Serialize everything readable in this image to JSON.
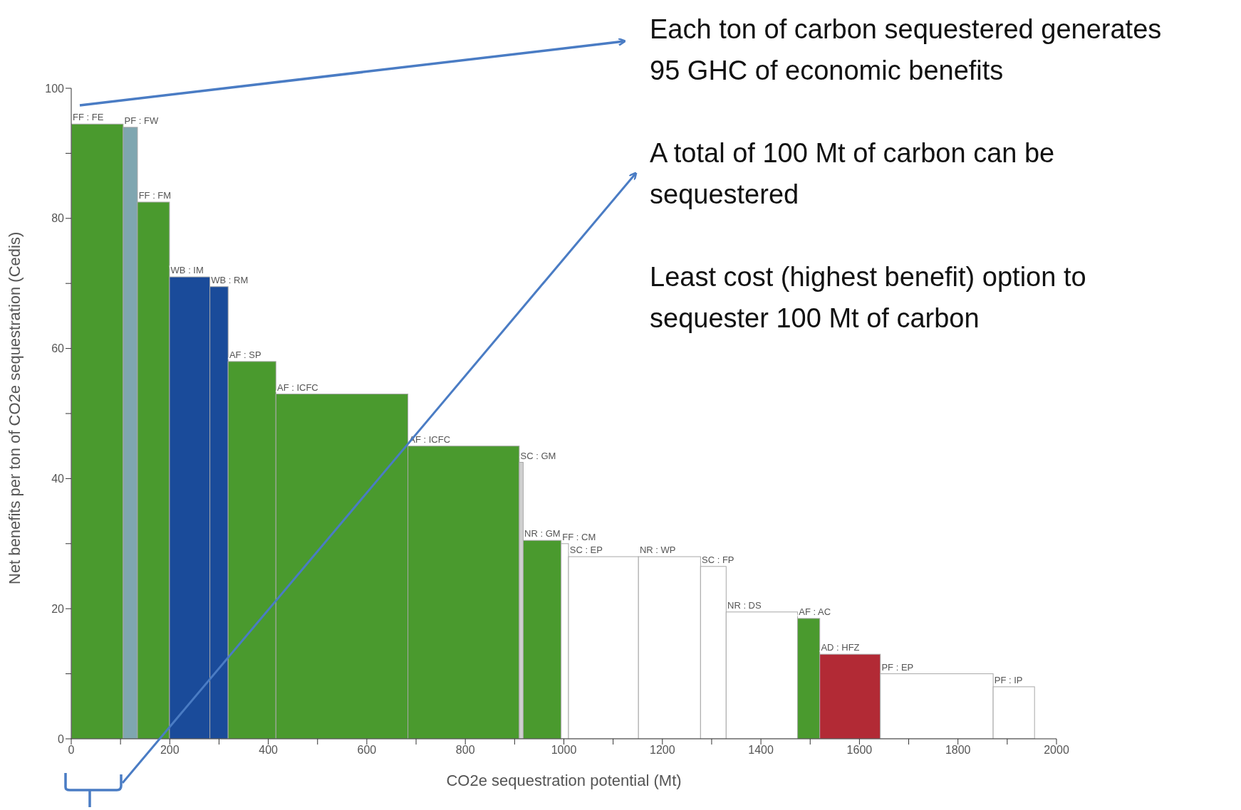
{
  "chart_data": {
    "type": "histogram",
    "xlabel": "CO2e sequestration potential (Mt)",
    "ylabel": "Net benefits per ton of CO2e sequestration (Cedis)",
    "bins": [
      0,
      105,
      134,
      199,
      281,
      318,
      415,
      683,
      909,
      917,
      994,
      1009,
      1151,
      1277,
      1329,
      1474,
      1519,
      1642,
      1871,
      1955
    ],
    "values": [
      94.5,
      94,
      82.5,
      71,
      69.5,
      58,
      53,
      45,
      42.5,
      30.5,
      30,
      28,
      28,
      26.5,
      19.5,
      18.5,
      13,
      10,
      8
    ],
    "colors": [
      "#4a9a2e",
      "#7fa6b0",
      "#4a9a2e",
      "#1a4b9a",
      "#1a4b9a",
      "#4a9a2e",
      "#4a9a2e",
      "#4a9a2e",
      "#d0d0d0",
      "#4a9a2e",
      "#ffffff",
      "#ffffff",
      "#ffffff",
      "#ffffff",
      "#ffffff",
      "#4a9a2e",
      "#b22a35",
      "#ffffff",
      "#ffffff"
    ],
    "xlim": [
      0,
      2000
    ],
    "xticks": [
      0,
      {
        "value": 100,
        "label": null
      },
      200,
      {
        "value": 300,
        "label": null
      },
      400,
      {
        "value": 500,
        "label": null
      },
      600,
      {
        "value": 700,
        "label": null
      },
      800,
      {
        "value": 900,
        "label": null
      },
      1000,
      {
        "value": 1100,
        "label": null
      },
      1200,
      {
        "value": 1300,
        "label": null
      },
      1400,
      {
        "value": 1500,
        "label": null
      },
      1600,
      {
        "value": 1700,
        "label": null
      },
      1800,
      {
        "value": 1900,
        "label": null
      },
      2000
    ],
    "ylim": [
      0,
      100
    ],
    "yticks": [
      0,
      {
        "value": 10,
        "label": null
      },
      20,
      {
        "value": 30,
        "label": null
      },
      40,
      {
        "value": 50,
        "label": null
      },
      60,
      {
        "value": 70,
        "label": null
      },
      80,
      {
        "value": 90,
        "label": null
      },
      100
    ],
    "grid": false,
    "legend": false,
    "annotations": [
      "Each ton of carbon sequestered generates 95 GHC of economic benefits",
      "A total of 100 Mt of carbon can be sequestered",
      "Least cost (highest benefit) option to sequester 100 Mt of carbon",
      {
        "text": "FF : FE",
        "x": 0,
        "y": 94.5
      },
      {
        "text": "PF : FW",
        "x": 105,
        "y": 94
      },
      {
        "text": "FF : FM",
        "x": 134,
        "y": 82.5
      },
      {
        "text": "WB : IM",
        "x": 199,
        "y": 71
      },
      {
        "text": "WB : RM",
        "x": 281,
        "y": 69.5
      },
      {
        "text": "AF : SP",
        "x": 318,
        "y": 58
      },
      {
        "text": "AF : ICFC",
        "x": 415,
        "y": 53
      },
      {
        "text": "AF : ICFC",
        "x": 683,
        "y": 45
      },
      {
        "text": "SC : GM",
        "x": 909,
        "y": 42.5
      },
      {
        "text": "NR : GM",
        "x": 917,
        "y": 30.5
      },
      {
        "text": "FF : CM",
        "x": 994,
        "y": 30
      },
      {
        "text": "SC : EP",
        "x": 1009,
        "y": 28
      },
      {
        "text": "NR : WP",
        "x": 1151,
        "y": 28
      },
      {
        "text": "SC : FP",
        "x": 1277,
        "y": 26.5
      },
      {
        "text": "NR : DS",
        "x": 1329,
        "y": 19.5
      },
      {
        "text": "AF : AC",
        "x": 1474,
        "y": 18.5
      },
      {
        "text": "AD : HFZ",
        "x": 1519,
        "y": 13
      },
      {
        "text": "PF : EP",
        "x": 1642,
        "y": 10
      },
      {
        "text": "PF : IP",
        "x": 1871,
        "y": 8
      }
    ]
  }
}
